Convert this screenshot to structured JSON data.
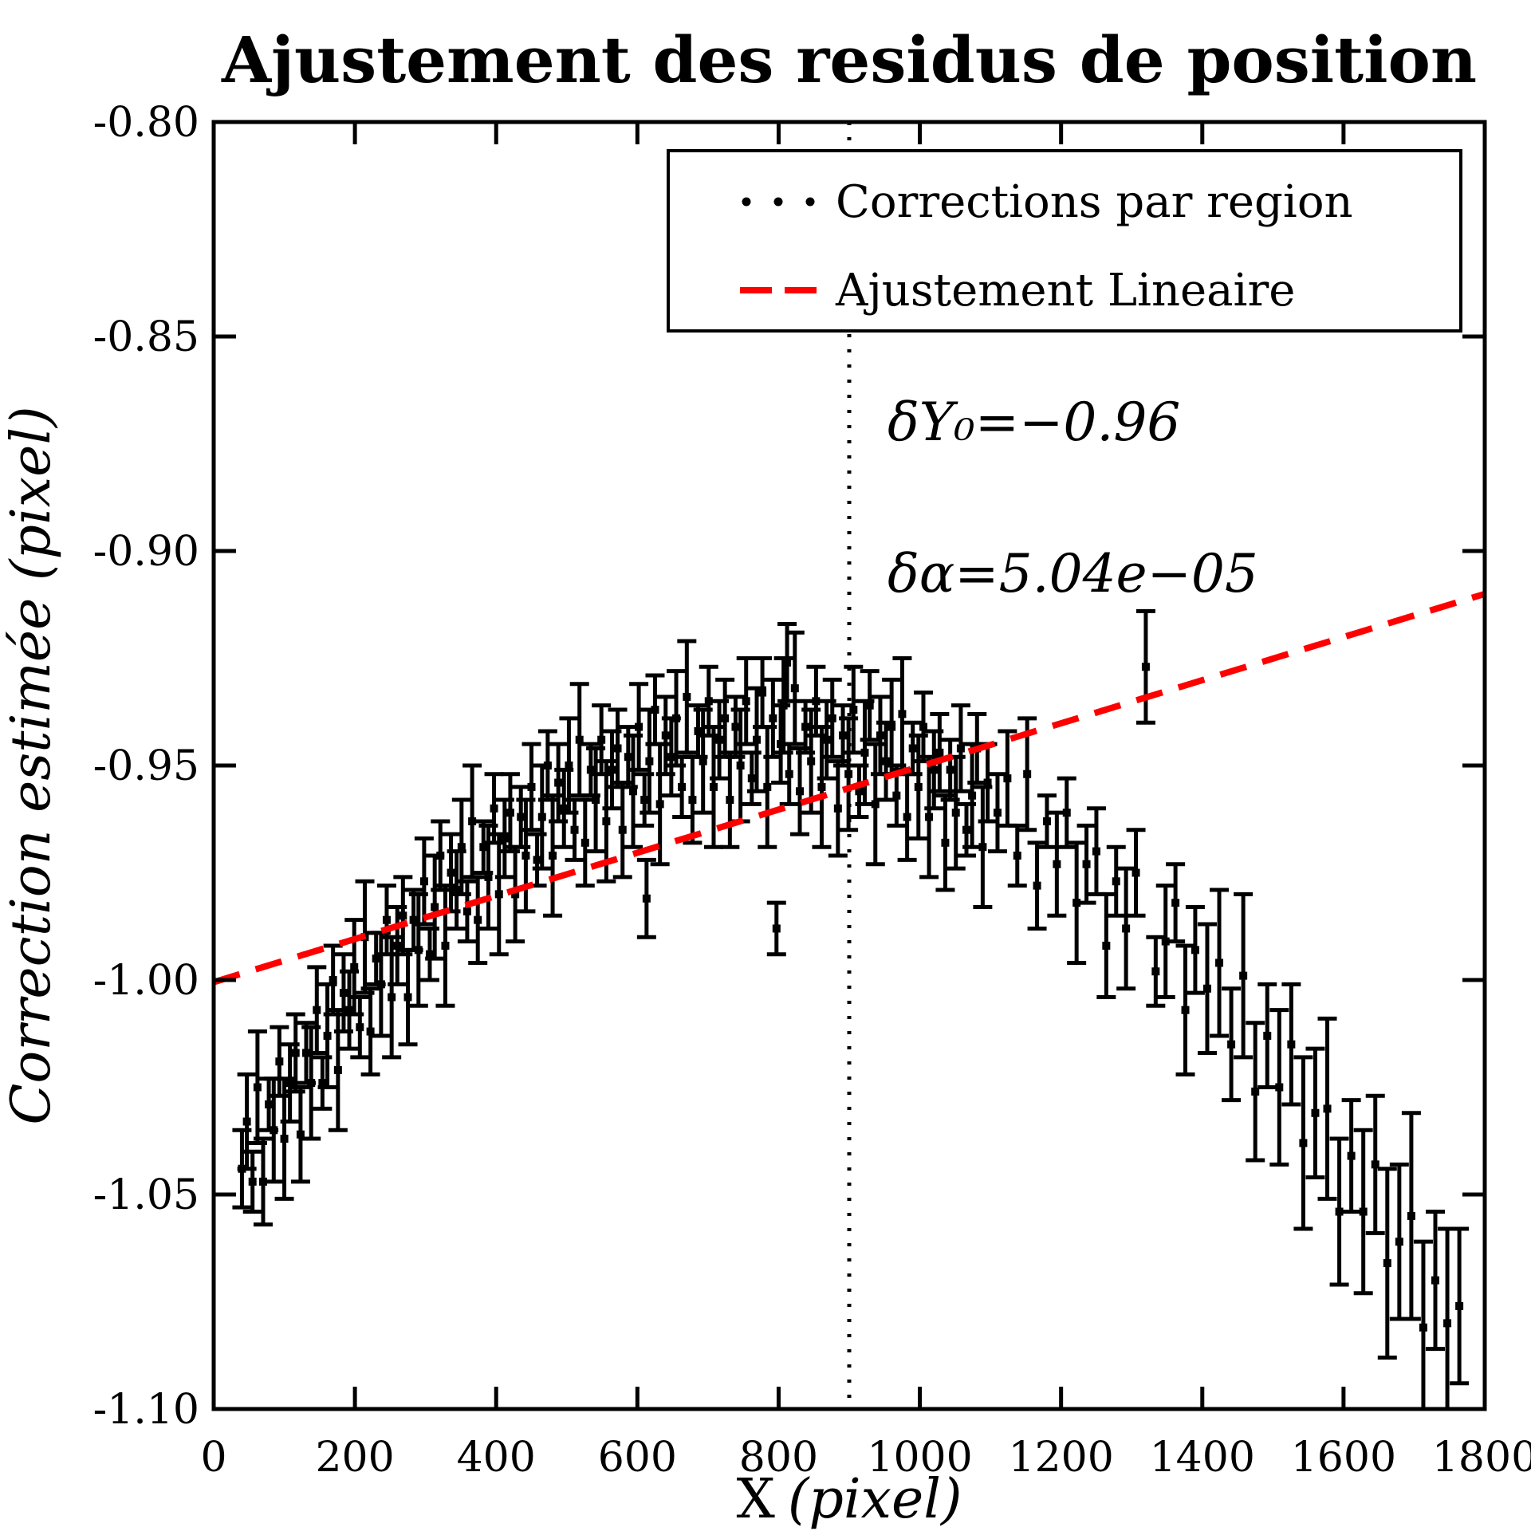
{
  "figure": {
    "title": "Ajustement des residus de position",
    "background": "#ffffff"
  },
  "axes": {
    "x_label_prefix": "X",
    "x_label_suffix": "(pixel)",
    "y_label": "Correction estimée (pixel)"
  },
  "annotations": [
    {
      "text": "δY₀=−0.96"
    },
    {
      "text": "δα=5.04e−05"
    }
  ],
  "legend": [
    {
      "label": "Corrections par region",
      "marker": "black-dots"
    },
    {
      "label": "Ajustement Lineaire",
      "marker": "red-dashed-line"
    }
  ],
  "colors": {
    "data": "#000000",
    "fit": "#ff0000",
    "background": "#ffffff"
  },
  "chart_data": {
    "type": "scatter",
    "title": "Ajustement des residus de position",
    "xlabel": "X (pixel)",
    "ylabel": "Correction estimée (pixel)",
    "xlim": [
      0,
      1800
    ],
    "ylim": [
      -1.1,
      -0.8
    ],
    "x_ticks": [
      0,
      200,
      400,
      600,
      800,
      1000,
      1200,
      1400,
      1600,
      1800
    ],
    "x_tick_labels": [
      "0",
      "200",
      "400",
      "600",
      "800",
      "1000",
      "1200",
      "1400",
      "1600",
      "1800"
    ],
    "y_ticks": [
      -0.8,
      -0.85,
      -0.9,
      -0.95,
      -1.0,
      -1.05,
      -1.1
    ],
    "y_tick_labels": [
      "-0.80",
      "-0.85",
      "-0.90",
      "-0.95",
      "-1.00",
      "-1.05",
      "-1.10"
    ],
    "grid": false,
    "legend_position": "upper right",
    "vline_x": 900,
    "vline_style": "dotted",
    "fit_line": {
      "name": "Ajustement Lineaire",
      "color": "#ff0000",
      "style": "dashed",
      "x": [
        0,
        1800
      ],
      "y": [
        -1.0005,
        -0.91
      ],
      "intercept_label": "δY₀=−0.96",
      "slope_label": "δα=5.04e−05"
    },
    "series": [
      {
        "name": "Corrections par region",
        "marker": "square-dot-with-errorbar",
        "color": "#000000",
        "points_format": [
          "x",
          "y",
          "yerr"
        ],
        "points": [
          [
            40,
            -1.044,
            0.009
          ],
          [
            47,
            -1.033,
            0.011
          ],
          [
            55,
            -1.047,
            0.007
          ],
          [
            62,
            -1.025,
            0.013
          ],
          [
            70,
            -1.047,
            0.01
          ],
          [
            78,
            -1.029,
            0.006
          ],
          [
            85,
            -1.035,
            0.012
          ],
          [
            93,
            -1.019,
            0.008
          ],
          [
            100,
            -1.037,
            0.014
          ],
          [
            108,
            -1.024,
            0.009
          ],
          [
            116,
            -1.017,
            0.009
          ],
          [
            123,
            -1.036,
            0.011
          ],
          [
            131,
            -1.017,
            0.007
          ],
          [
            138,
            -1.024,
            0.013
          ],
          [
            146,
            -1.007,
            0.01
          ],
          [
            154,
            -1.024,
            0.006
          ],
          [
            161,
            -1.013,
            0.012
          ],
          [
            169,
            -1.0,
            0.008
          ],
          [
            176,
            -1.021,
            0.014
          ],
          [
            184,
            -1.003,
            0.009
          ],
          [
            192,
            -1.007,
            0.009
          ],
          [
            199,
            -0.997,
            0.011
          ],
          [
            207,
            -1.011,
            0.007
          ],
          [
            214,
            -0.99,
            0.013
          ],
          [
            222,
            -1.012,
            0.01
          ],
          [
            230,
            -0.995,
            0.006
          ],
          [
            237,
            -1.001,
            0.012
          ],
          [
            245,
            -0.986,
            0.008
          ],
          [
            252,
            -1.004,
            0.014
          ],
          [
            260,
            -0.992,
            0.009
          ],
          [
            268,
            -0.985,
            0.009
          ],
          [
            275,
            -1.004,
            0.011
          ],
          [
            283,
            -0.986,
            0.007
          ],
          [
            290,
            -0.993,
            0.013
          ],
          [
            298,
            -0.977,
            0.01
          ],
          [
            306,
            -0.994,
            0.006
          ],
          [
            313,
            -0.983,
            0.012
          ],
          [
            321,
            -0.971,
            0.008
          ],
          [
            328,
            -0.992,
            0.014
          ],
          [
            336,
            -0.975,
            0.009
          ],
          [
            344,
            -0.979,
            0.009
          ],
          [
            351,
            -0.969,
            0.011
          ],
          [
            359,
            -0.984,
            0.007
          ],
          [
            366,
            -0.963,
            0.013
          ],
          [
            374,
            -0.986,
            0.01
          ],
          [
            382,
            -0.969,
            0.006
          ],
          [
            389,
            -0.976,
            0.012
          ],
          [
            397,
            -0.96,
            0.008
          ],
          [
            404,
            -0.98,
            0.014
          ],
          [
            412,
            -0.967,
            0.009
          ],
          [
            420,
            -0.961,
            0.009
          ],
          [
            427,
            -0.98,
            0.011
          ],
          [
            435,
            -0.962,
            0.007
          ],
          [
            442,
            -0.971,
            0.013
          ],
          [
            450,
            -0.955,
            0.01
          ],
          [
            458,
            -0.972,
            0.006
          ],
          [
            465,
            -0.962,
            0.012
          ],
          [
            473,
            -0.95,
            0.008
          ],
          [
            480,
            -0.971,
            0.014
          ],
          [
            488,
            -0.954,
            0.009
          ],
          [
            496,
            -0.96,
            0.009
          ],
          [
            503,
            -0.95,
            0.011
          ],
          [
            511,
            -0.965,
            0.007
          ],
          [
            518,
            -0.944,
            0.013
          ],
          [
            526,
            -0.968,
            0.01
          ],
          [
            534,
            -0.951,
            0.006
          ],
          [
            541,
            -0.958,
            0.012
          ],
          [
            549,
            -0.944,
            0.008
          ],
          [
            556,
            -0.963,
            0.014
          ],
          [
            564,
            -0.951,
            0.009
          ],
          [
            572,
            -0.946,
            0.009
          ],
          [
            579,
            -0.965,
            0.011
          ],
          [
            587,
            -0.948,
            0.007
          ],
          [
            594,
            -0.956,
            0.013
          ],
          [
            602,
            -0.941,
            0.01
          ],
          [
            610,
            -0.958,
            0.006
          ],
          [
            613,
            -0.981,
            0.009
          ],
          [
            617,
            -0.949,
            0.012
          ],
          [
            625,
            -0.937,
            0.008
          ],
          [
            632,
            -0.959,
            0.014
          ],
          [
            640,
            -0.943,
            0.009
          ],
          [
            648,
            -0.948,
            0.009
          ],
          [
            655,
            -0.939,
            0.011
          ],
          [
            663,
            -0.955,
            0.007
          ],
          [
            670,
            -0.934,
            0.013
          ],
          [
            678,
            -0.958,
            0.01
          ],
          [
            686,
            -0.942,
            0.006
          ],
          [
            693,
            -0.949,
            0.012
          ],
          [
            701,
            -0.935,
            0.008
          ],
          [
            708,
            -0.955,
            0.014
          ],
          [
            716,
            -0.944,
            0.009
          ],
          [
            724,
            -0.939,
            0.009
          ],
          [
            731,
            -0.958,
            0.011
          ],
          [
            739,
            -0.941,
            0.007
          ],
          [
            746,
            -0.95,
            0.013
          ],
          [
            754,
            -0.935,
            0.01
          ],
          [
            762,
            -0.953,
            0.006
          ],
          [
            769,
            -0.944,
            0.012
          ],
          [
            777,
            -0.933,
            0.008
          ],
          [
            784,
            -0.955,
            0.014
          ],
          [
            792,
            -0.939,
            0.009
          ],
          [
            797,
            -0.988,
            0.006
          ],
          [
            803,
            -0.945,
            0.009
          ],
          [
            807,
            -0.936,
            0.011
          ],
          [
            812,
            -0.926,
            0.009
          ],
          [
            815,
            -0.952,
            0.007
          ],
          [
            823,
            -0.932,
            0.013
          ],
          [
            830,
            -0.956,
            0.01
          ],
          [
            838,
            -0.941,
            0.006
          ],
          [
            846,
            -0.949,
            0.012
          ],
          [
            853,
            -0.935,
            0.008
          ],
          [
            861,
            -0.955,
            0.014
          ],
          [
            868,
            -0.944,
            0.009
          ],
          [
            876,
            -0.939,
            0.009
          ],
          [
            884,
            -0.96,
            0.011
          ],
          [
            891,
            -0.943,
            0.007
          ],
          [
            899,
            -0.952,
            0.013
          ],
          [
            906,
            -0.937,
            0.01
          ],
          [
            914,
            -0.956,
            0.006
          ],
          [
            922,
            -0.947,
            0.012
          ],
          [
            929,
            -0.936,
            0.008
          ],
          [
            937,
            -0.959,
            0.014
          ],
          [
            944,
            -0.943,
            0.009
          ],
          [
            952,
            -0.949,
            0.009
          ],
          [
            960,
            -0.941,
            0.011
          ],
          [
            967,
            -0.957,
            0.007
          ],
          [
            975,
            -0.938,
            0.013
          ],
          [
            982,
            -0.962,
            0.01
          ],
          [
            990,
            -0.946,
            0.006
          ],
          [
            998,
            -0.955,
            0.012
          ],
          [
            1005,
            -0.941,
            0.008
          ],
          [
            1013,
            -0.962,
            0.014
          ],
          [
            1020,
            -0.951,
            0.009
          ],
          [
            1028,
            -0.947,
            0.009
          ],
          [
            1036,
            -0.968,
            0.011
          ],
          [
            1043,
            -0.951,
            0.007
          ],
          [
            1051,
            -0.961,
            0.013
          ],
          [
            1058,
            -0.946,
            0.01
          ],
          [
            1066,
            -0.965,
            0.006
          ],
          [
            1074,
            -0.957,
            0.012
          ],
          [
            1081,
            -0.946,
            0.008
          ],
          [
            1089,
            -0.969,
            0.014
          ],
          [
            1096,
            -0.954,
            0.009
          ],
          [
            1110,
            -0.961,
            0.009
          ],
          [
            1124,
            -0.953,
            0.011
          ],
          [
            1138,
            -0.971,
            0.007
          ],
          [
            1152,
            -0.952,
            0.013
          ],
          [
            1166,
            -0.978,
            0.01
          ],
          [
            1180,
            -0.963,
            0.006
          ],
          [
            1194,
            -0.973,
            0.012
          ],
          [
            1208,
            -0.961,
            0.008
          ],
          [
            1222,
            -0.982,
            0.014
          ],
          [
            1236,
            -0.973,
            0.009
          ],
          [
            1250,
            -0.97,
            0.01
          ],
          [
            1264,
            -0.992,
            0.012
          ],
          [
            1278,
            -0.977,
            0.008
          ],
          [
            1292,
            -0.988,
            0.014
          ],
          [
            1306,
            -0.975,
            0.01
          ],
          [
            1320,
            -0.927,
            0.013
          ],
          [
            1334,
            -0.998,
            0.008
          ],
          [
            1348,
            -0.991,
            0.013
          ],
          [
            1362,
            -0.982,
            0.009
          ],
          [
            1376,
            -1.007,
            0.015
          ],
          [
            1390,
            -0.993,
            0.01
          ],
          [
            1407,
            -1.002,
            0.015
          ],
          [
            1424,
            -0.996,
            0.017
          ],
          [
            1441,
            -1.015,
            0.013
          ],
          [
            1458,
            -0.999,
            0.019
          ],
          [
            1475,
            -1.026,
            0.016
          ],
          [
            1492,
            -1.013,
            0.012
          ],
          [
            1509,
            -1.025,
            0.018
          ],
          [
            1526,
            -1.015,
            0.014
          ],
          [
            1543,
            -1.038,
            0.02
          ],
          [
            1560,
            -1.031,
            0.015
          ],
          [
            1577,
            -1.03,
            0.021
          ],
          [
            1594,
            -1.054,
            0.017
          ],
          [
            1611,
            -1.041,
            0.013
          ],
          [
            1628,
            -1.054,
            0.019
          ],
          [
            1645,
            -1.043,
            0.016
          ],
          [
            1662,
            -1.066,
            0.022
          ],
          [
            1679,
            -1.061,
            0.018
          ],
          [
            1696,
            -1.055,
            0.024
          ],
          [
            1713,
            -1.081,
            0.02
          ],
          [
            1730,
            -1.07,
            0.016
          ],
          [
            1747,
            -1.08,
            0.022
          ],
          [
            1764,
            -1.076,
            0.018
          ]
        ]
      }
    ]
  }
}
